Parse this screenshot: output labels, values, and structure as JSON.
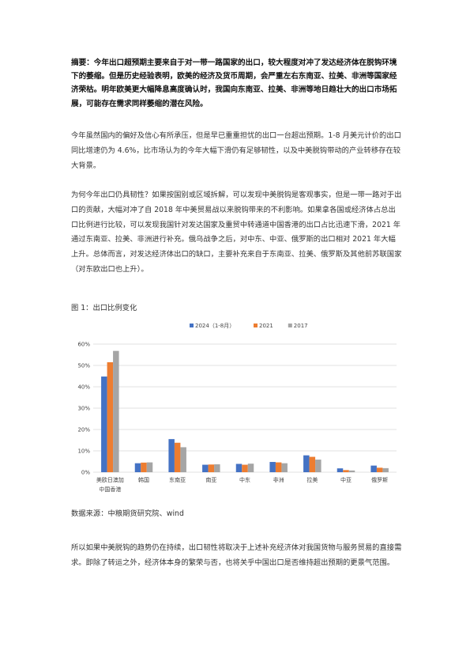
{
  "document": {
    "abstract": "摘要：今年出口超预期主要来自于对一带一路国家的出口，较大程度对冲了发达经济体在脱钩环境下的萎缩。但是历史经验表明，欧美的经济及货币周期，会严重左右东南亚、拉美、非洲等国家经济荣枯。明年欧美更大幅降息高度确认时，我国向东南亚、拉美、非洲等地日趋壮大的出口市场拓展，可能存在需求同样萎缩的潜在风险。",
    "paragraph1": "今年虽然国内的偏好及信心有所承压，但是早已重重担忧的出口一台超出预期。1-8 月美元计价的出口同比增速仍为 4.6%，比市场认为的今年大幅下滑仍有足够韧性，以及中美脱钩带动的产业转移存在较大背景。",
    "paragraph2": "为何今年出口仍具韧性？如果按国别或区域拆解，可以发现中美脱钩是客观事实，但是一带一路对于出口的贡献，大幅对冲了自 2018 年中美贸易战以来脱钩带来的不利影响。如果拿各国或经济体占总出口比例进行比较，可以发现我国针对发达国家及重贸中转通道中国香港的出口占比迅速下滑，2021 年通过东南亚、拉美、非洲进行补充。俄乌战争之后，对中东、中亚、俄罗斯的出口相对 2021 年大幅上升。总体而言，对发达经济体出口的缺口，主要补充来自于东南亚、拉美、俄罗斯及其他前苏联国家（对东欧出口也上升）。",
    "figure_title": "图 1：出口比例变化",
    "source": "数据来源：中粮期货研究院、wind",
    "paragraph3": "所以如果中美脱钩的趋势仍在持续，出口韧性将取决于上述补充经济体对我国货物与服务贸易的直接需求。即除了转运之外，经济体本身的繁荣与否，也将关乎中国出口是否维持超出预期的更景气范围。"
  },
  "chart_data": {
    "type": "bar",
    "categories": [
      "美欧日澳加中国香港",
      "韩国",
      "东南亚",
      "南亚",
      "中东",
      "非洲",
      "拉美",
      "中亚",
      "俄罗斯"
    ],
    "category_lines": [
      [
        "美欧日澳加",
        "中国香港"
      ],
      [
        "韩国"
      ],
      [
        "东南亚"
      ],
      [
        "南亚"
      ],
      [
        "中东"
      ],
      [
        "非洲"
      ],
      [
        "拉美"
      ],
      [
        "中亚"
      ],
      [
        "俄罗斯"
      ]
    ],
    "series": [
      {
        "name": "2024（1-8月）",
        "color": "#4472C4",
        "values": [
          44.8,
          4.2,
          15.5,
          3.5,
          3.9,
          4.8,
          7.9,
          1.8,
          3.1
        ]
      },
      {
        "name": "2021",
        "color": "#ED7D31",
        "values": [
          51.5,
          4.5,
          13.8,
          3.6,
          3.5,
          4.6,
          7.2,
          1.0,
          2.1
        ]
      },
      {
        "name": "2017",
        "color": "#A5A5A5",
        "values": [
          56.8,
          4.6,
          11.7,
          3.7,
          4.0,
          4.2,
          5.9,
          0.8,
          1.9
        ]
      }
    ],
    "ylim": [
      0,
      60
    ],
    "yticks": [
      0,
      10,
      20,
      30,
      40,
      50,
      60
    ],
    "ytick_labels": [
      "0%",
      "10%",
      "20%",
      "30%",
      "40%",
      "50%",
      "60%"
    ],
    "legend_position": "top",
    "grid": true
  }
}
